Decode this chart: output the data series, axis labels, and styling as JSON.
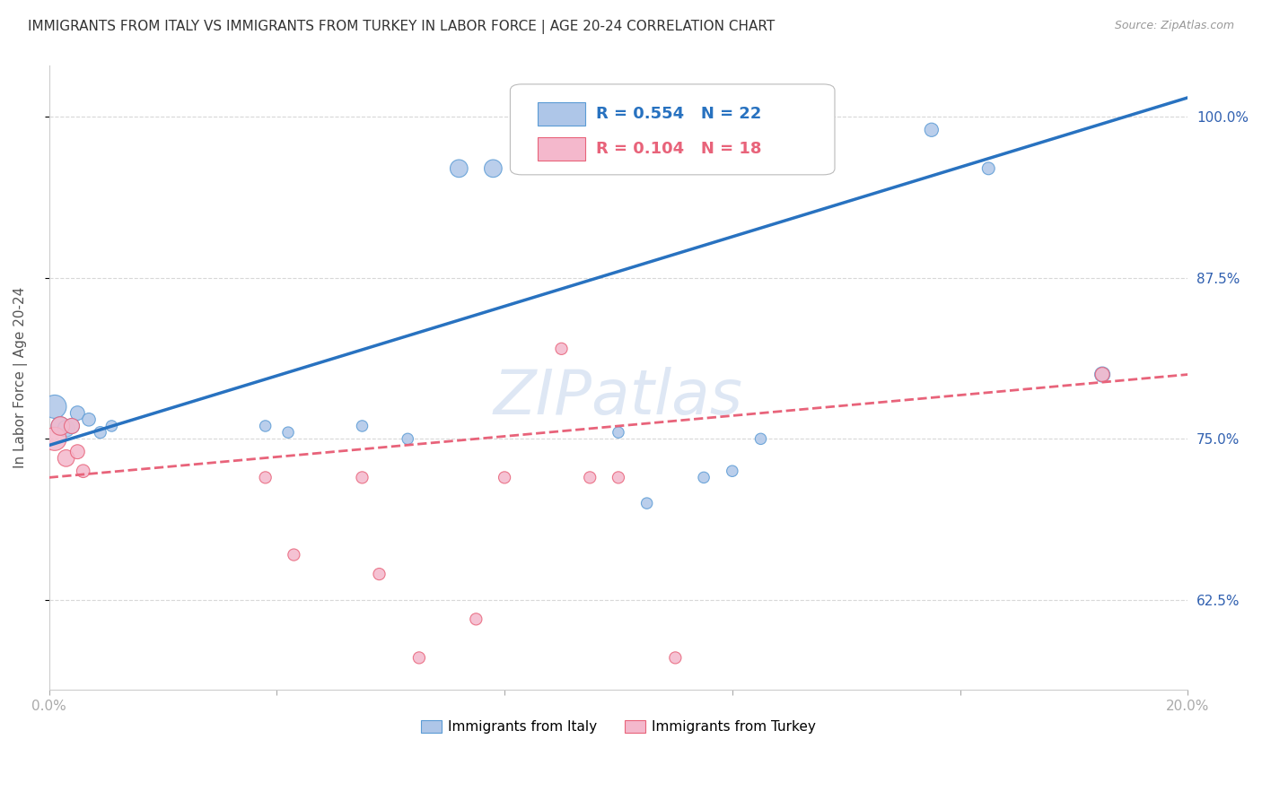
{
  "title": "IMMIGRANTS FROM ITALY VS IMMIGRANTS FROM TURKEY IN LABOR FORCE | AGE 20-24 CORRELATION CHART",
  "source": "Source: ZipAtlas.com",
  "ylabel": "In Labor Force | Age 20-24",
  "x_min": 0.0,
  "x_max": 0.2,
  "y_min": 0.555,
  "y_max": 1.04,
  "x_ticks": [
    0.0,
    0.04,
    0.08,
    0.12,
    0.16,
    0.2
  ],
  "x_tick_labels": [
    "0.0%",
    "",
    "",
    "",
    "",
    "20.0%"
  ],
  "y_ticks": [
    0.625,
    0.75,
    0.875,
    1.0
  ],
  "y_tick_labels": [
    "62.5%",
    "75.0%",
    "87.5%",
    "100.0%"
  ],
  "italy_color": "#aec6e8",
  "turkey_color": "#f4b8cc",
  "italy_edge": "#5b9bd5",
  "turkey_edge": "#e8637a",
  "italy_line_color": "#2872c0",
  "turkey_line_color": "#e8637a",
  "R_italy": 0.554,
  "N_italy": 22,
  "R_turkey": 0.104,
  "N_turkey": 18,
  "italy_points_x": [
    0.001,
    0.002,
    0.003,
    0.004,
    0.005,
    0.007,
    0.009,
    0.011,
    0.038,
    0.042,
    0.055,
    0.063,
    0.072,
    0.078,
    0.1,
    0.105,
    0.115,
    0.12,
    0.125,
    0.155,
    0.165,
    0.185
  ],
  "italy_points_y": [
    0.775,
    0.76,
    0.758,
    0.76,
    0.77,
    0.765,
    0.755,
    0.76,
    0.76,
    0.755,
    0.76,
    0.75,
    0.96,
    0.96,
    0.755,
    0.7,
    0.72,
    0.725,
    0.75,
    0.99,
    0.96,
    0.8
  ],
  "turkey_points_x": [
    0.001,
    0.002,
    0.003,
    0.004,
    0.005,
    0.006,
    0.038,
    0.043,
    0.055,
    0.058,
    0.065,
    0.075,
    0.08,
    0.09,
    0.095,
    0.1,
    0.11,
    0.185
  ],
  "turkey_points_y": [
    0.75,
    0.76,
    0.735,
    0.76,
    0.74,
    0.725,
    0.72,
    0.66,
    0.72,
    0.645,
    0.58,
    0.61,
    0.72,
    0.82,
    0.72,
    0.72,
    0.58,
    0.8
  ],
  "italy_sizes": [
    350,
    220,
    180,
    150,
    130,
    110,
    90,
    80,
    80,
    80,
    80,
    80,
    200,
    200,
    80,
    80,
    80,
    80,
    80,
    120,
    100,
    150
  ],
  "turkey_sizes": [
    350,
    220,
    180,
    150,
    130,
    110,
    90,
    90,
    90,
    90,
    90,
    90,
    90,
    90,
    90,
    90,
    90,
    130
  ],
  "title_fontsize": 11,
  "axis_label_fontsize": 11,
  "tick_fontsize": 11,
  "legend_fontsize": 13,
  "watermark_fontsize": 50,
  "watermark_color": "#c8d8ee",
  "watermark_alpha": 0.6,
  "background_color": "#ffffff",
  "grid_color": "#d8d8d8",
  "right_tick_color": "#3060b0",
  "italy_line_y0": 0.745,
  "italy_line_y1": 1.015,
  "turkey_line_y0": 0.72,
  "turkey_line_y1": 0.8
}
